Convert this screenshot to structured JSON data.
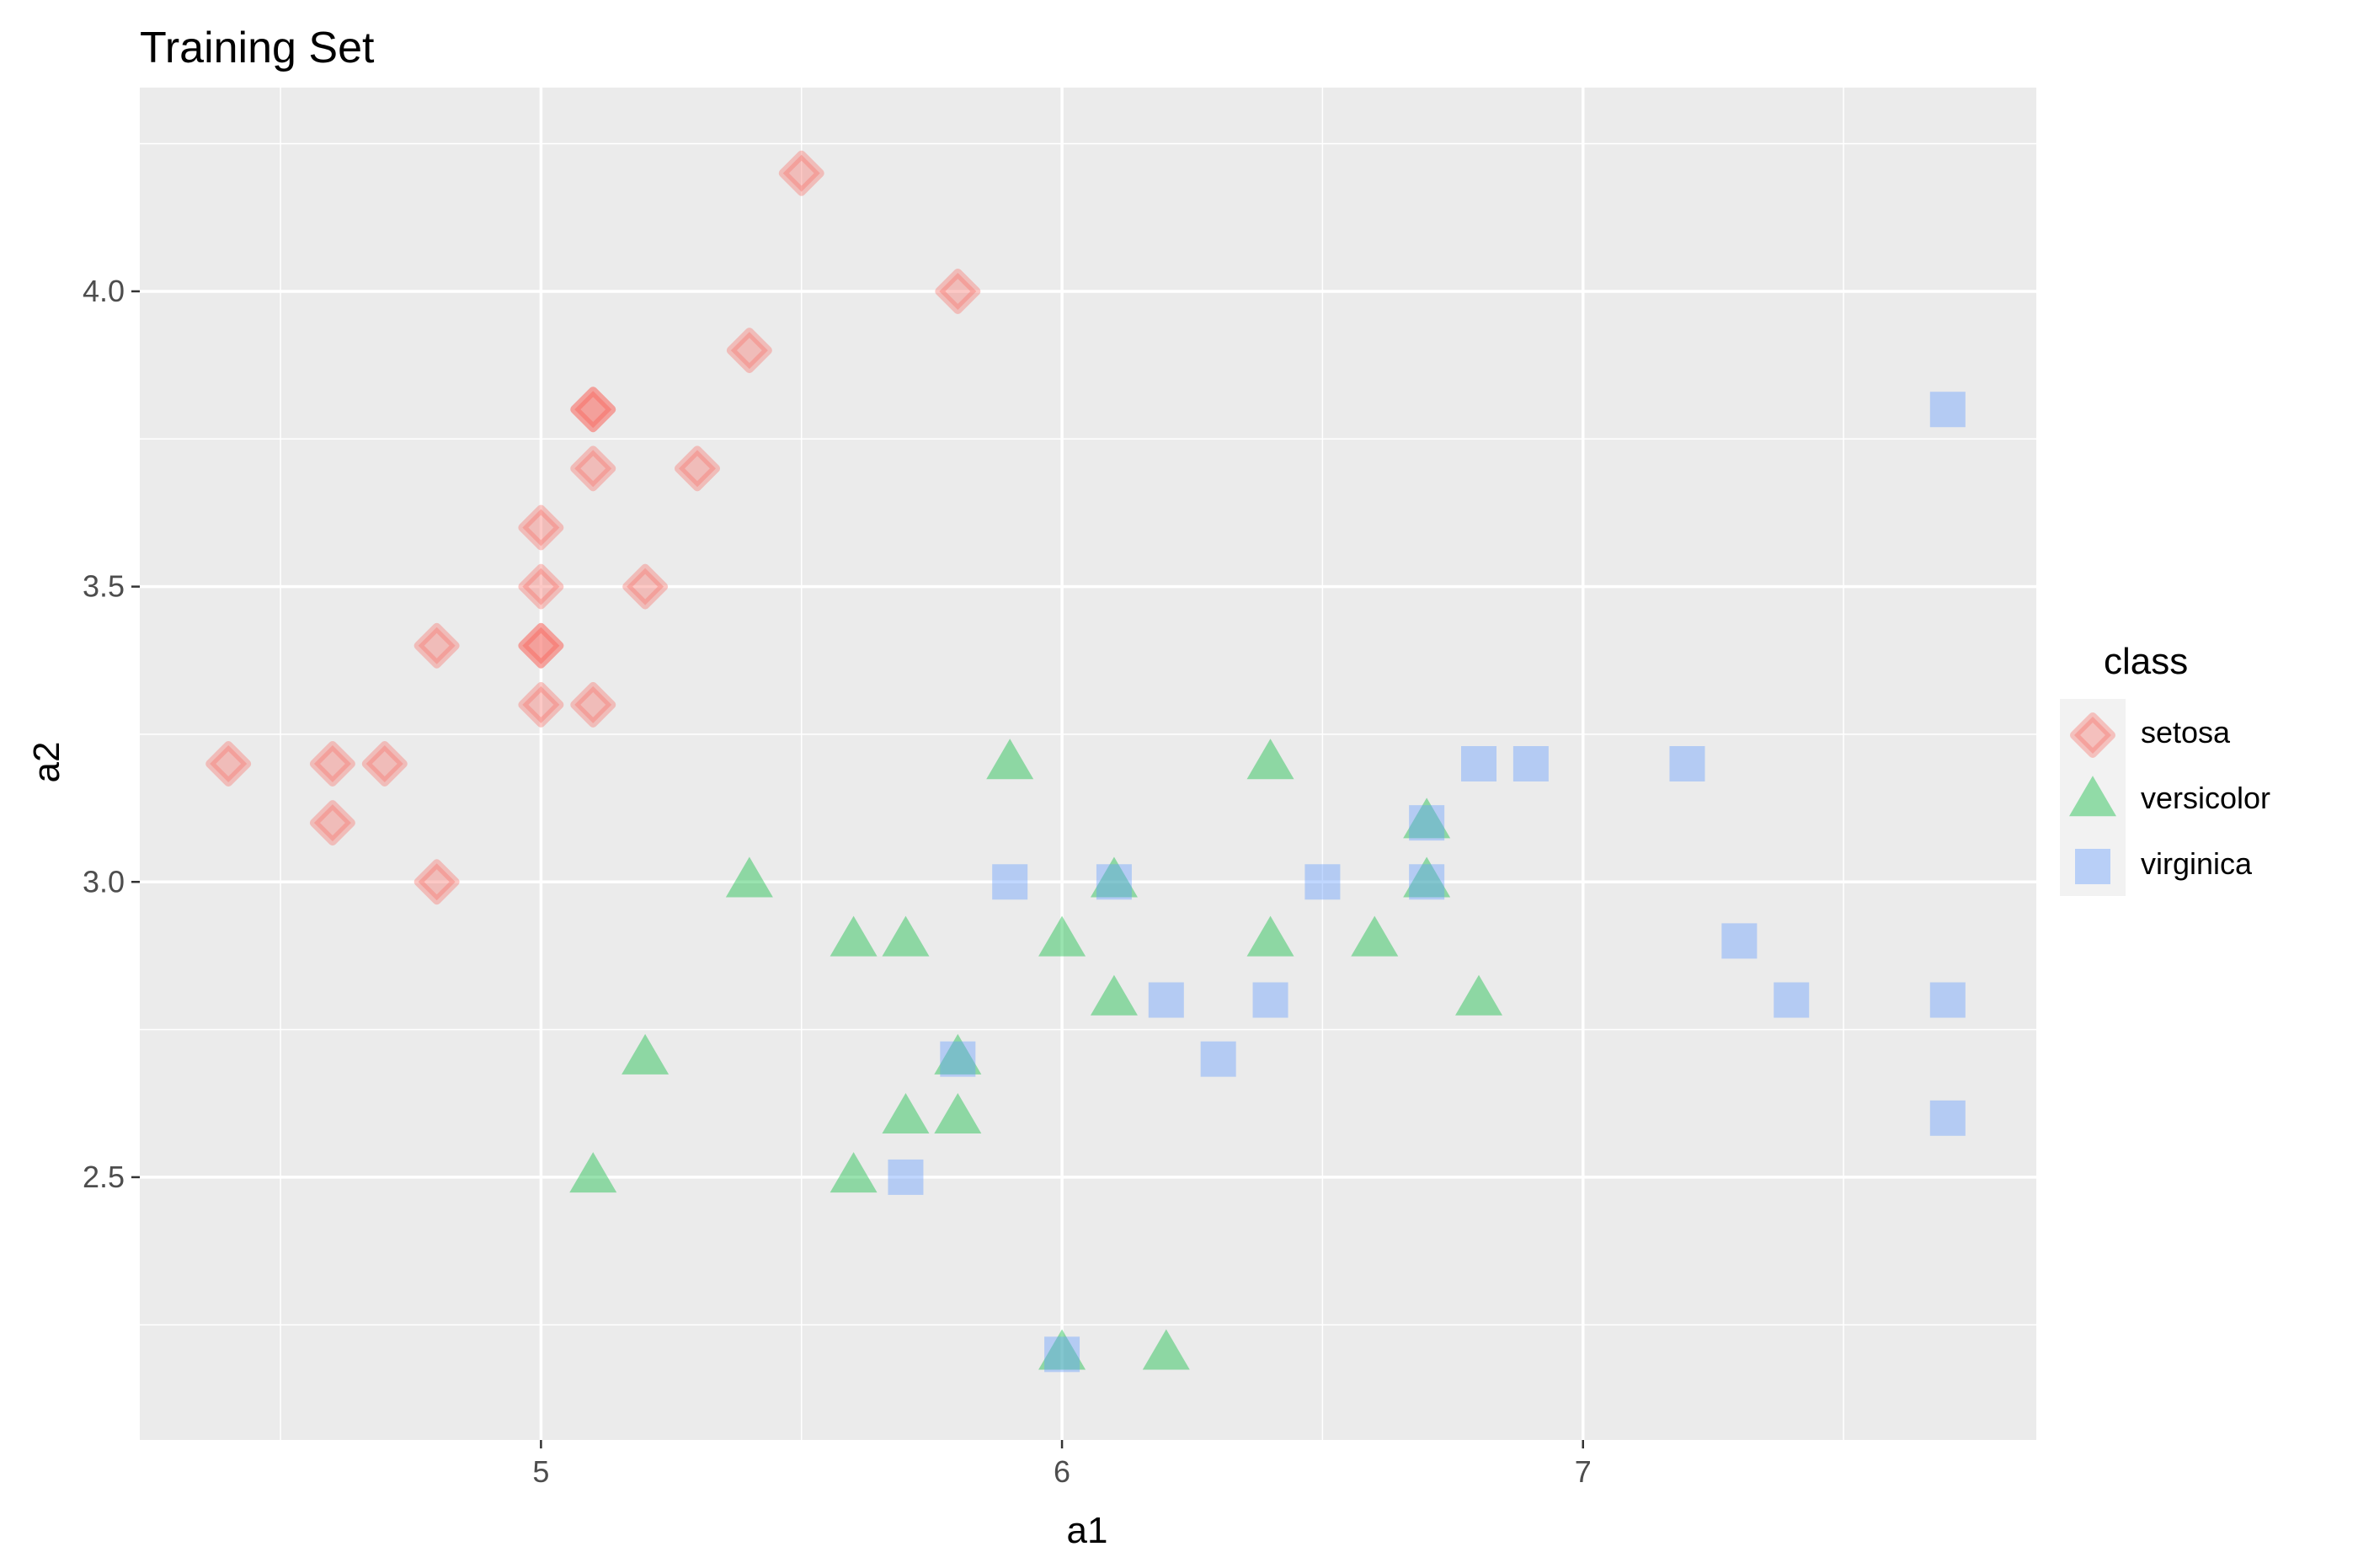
{
  "chart_data": {
    "type": "scatter",
    "title": "Training Set",
    "xlabel": "a1",
    "ylabel": "a2",
    "xlim": [
      4.23,
      7.87
    ],
    "ylim": [
      2.055,
      4.345
    ],
    "x_ticks": [
      5,
      6,
      7
    ],
    "x_tick_labels": [
      "5",
      "6",
      "7"
    ],
    "y_ticks": [
      2.5,
      3.0,
      3.5,
      4.0
    ],
    "y_tick_labels": [
      "2.5",
      "3.0",
      "3.5",
      "4.0"
    ],
    "grid": true,
    "legend": {
      "title": "class",
      "position": "right"
    },
    "series": [
      {
        "name": "setosa",
        "marker": "diamond",
        "color": "#F8766D",
        "points": [
          [
            5.5,
            4.2
          ],
          [
            5.8,
            4.0
          ],
          [
            5.4,
            3.9
          ],
          [
            5.1,
            3.8
          ],
          [
            5.1,
            3.8
          ],
          [
            5.1,
            3.7
          ],
          [
            5.3,
            3.7
          ],
          [
            5.0,
            3.6
          ],
          [
            5.0,
            3.5
          ],
          [
            5.2,
            3.5
          ],
          [
            4.8,
            3.4
          ],
          [
            5.0,
            3.4
          ],
          [
            5.0,
            3.4
          ],
          [
            5.0,
            3.3
          ],
          [
            5.1,
            3.3
          ],
          [
            4.4,
            3.2
          ],
          [
            4.6,
            3.2
          ],
          [
            4.7,
            3.2
          ],
          [
            4.6,
            3.1
          ],
          [
            4.8,
            3.0
          ]
        ]
      },
      {
        "name": "versicolor",
        "marker": "triangle",
        "color": "#00BA38",
        "points": [
          [
            5.9,
            3.2
          ],
          [
            6.4,
            3.2
          ],
          [
            6.7,
            3.1
          ],
          [
            5.4,
            3.0
          ],
          [
            6.1,
            3.0
          ],
          [
            6.7,
            3.0
          ],
          [
            5.6,
            2.9
          ],
          [
            5.7,
            2.9
          ],
          [
            6.0,
            2.9
          ],
          [
            6.4,
            2.9
          ],
          [
            6.6,
            2.9
          ],
          [
            6.1,
            2.8
          ],
          [
            6.8,
            2.8
          ],
          [
            5.2,
            2.7
          ],
          [
            5.8,
            2.7
          ],
          [
            5.7,
            2.6
          ],
          [
            5.8,
            2.6
          ],
          [
            5.1,
            2.5
          ],
          [
            5.6,
            2.5
          ],
          [
            6.0,
            2.2
          ],
          [
            6.2,
            2.2
          ]
        ]
      },
      {
        "name": "virginica",
        "marker": "square",
        "color": "#619CFF",
        "points": [
          [
            7.7,
            3.8
          ],
          [
            6.8,
            3.2
          ],
          [
            6.9,
            3.2
          ],
          [
            7.2,
            3.2
          ],
          [
            6.7,
            3.1
          ],
          [
            5.9,
            3.0
          ],
          [
            6.1,
            3.0
          ],
          [
            6.5,
            3.0
          ],
          [
            6.7,
            3.0
          ],
          [
            7.3,
            2.9
          ],
          [
            6.2,
            2.8
          ],
          [
            6.4,
            2.8
          ],
          [
            7.4,
            2.8
          ],
          [
            7.7,
            2.8
          ],
          [
            5.8,
            2.7
          ],
          [
            6.3,
            2.7
          ],
          [
            7.7,
            2.6
          ],
          [
            5.7,
            2.5
          ],
          [
            6.0,
            2.2
          ]
        ]
      }
    ]
  }
}
